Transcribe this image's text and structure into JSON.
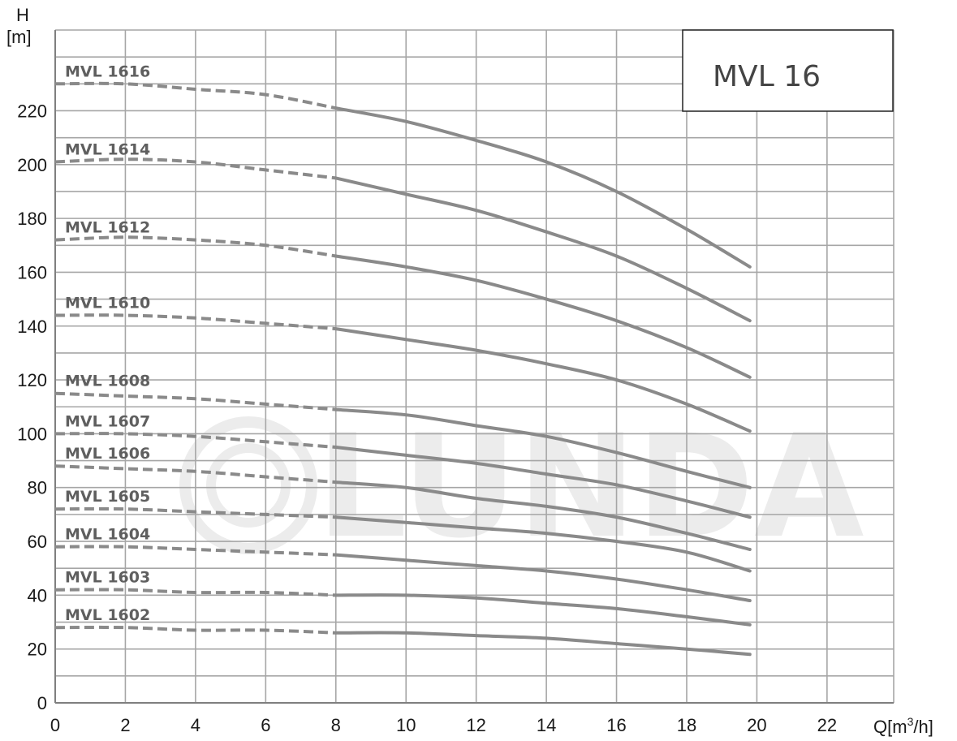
{
  "chart_data": {
    "type": "line",
    "title": "MVL 16",
    "xlabel": "Q[m",
    "xlabel_sup": "3",
    "xlabel_end": "/h]",
    "ylabel_top": "H",
    "ylabel_unit": "[m]",
    "xlim": [
      0,
      23.9
    ],
    "ylim": [
      0,
      250
    ],
    "x_ticks": [
      0,
      2,
      4,
      6,
      8,
      10,
      12,
      14,
      16,
      18,
      20,
      22
    ],
    "y_ticks": [
      0,
      20,
      40,
      60,
      80,
      100,
      120,
      140,
      160,
      180,
      200,
      220
    ],
    "x_grid_step": 2,
    "y_grid_step": 10,
    "grid": true,
    "watermark": "LUNDA",
    "solid_from_x": 8,
    "x": [
      0,
      2,
      4,
      6,
      8,
      10,
      12,
      14,
      16,
      18,
      19.8
    ],
    "series": [
      {
        "name": "MVL 1616",
        "values": [
          230,
          230,
          228,
          226,
          221,
          216,
          209,
          201,
          190,
          176,
          162
        ]
      },
      {
        "name": "MVL 1614",
        "values": [
          201,
          202,
          201,
          198,
          195,
          189,
          183,
          175,
          166,
          154,
          142
        ]
      },
      {
        "name": "MVL 1612",
        "values": [
          172,
          173,
          172,
          170,
          166,
          162,
          157,
          150,
          142,
          132,
          121
        ]
      },
      {
        "name": "MVL 1610",
        "values": [
          144,
          144,
          143,
          141,
          139,
          135,
          131,
          126,
          120,
          111,
          101
        ]
      },
      {
        "name": "MVL 1608",
        "values": [
          115,
          114,
          113,
          111,
          109,
          107,
          103,
          99,
          93,
          86,
          80
        ]
      },
      {
        "name": "MVL 1607",
        "values": [
          100,
          100,
          99,
          97,
          95,
          92,
          89,
          85,
          81,
          75,
          69
        ]
      },
      {
        "name": "MVL 1606",
        "values": [
          88,
          87,
          86,
          84,
          82,
          80,
          76,
          73,
          69,
          63,
          57
        ]
      },
      {
        "name": "MVL 1605",
        "values": [
          72,
          72,
          71,
          70,
          69,
          67,
          65,
          63,
          60,
          56,
          49
        ]
      },
      {
        "name": "MVL 1604",
        "values": [
          58,
          58,
          57,
          56,
          55,
          53,
          51,
          49,
          46,
          42,
          38
        ]
      },
      {
        "name": "MVL 1603",
        "values": [
          42,
          42,
          41,
          41,
          40,
          40,
          39,
          37,
          35,
          32,
          29
        ]
      },
      {
        "name": "MVL 1602",
        "values": [
          28,
          28,
          27,
          27,
          26,
          26,
          25,
          24,
          22,
          20,
          18
        ]
      }
    ]
  }
}
